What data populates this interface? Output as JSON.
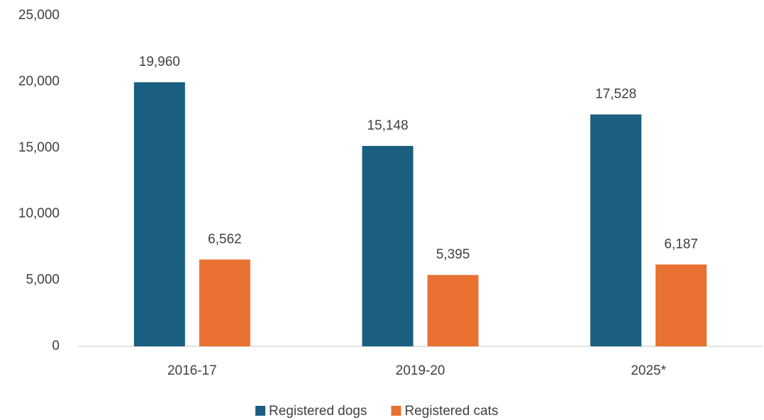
{
  "chart_data": {
    "type": "bar",
    "categories": [
      "2016-17",
      "2019-20",
      "2025*"
    ],
    "series": [
      {
        "name": "Registered dogs",
        "color": "#1a5e80",
        "values": [
          19960,
          15148,
          17528
        ],
        "value_labels": [
          "19,960",
          "15,148",
          "17,528"
        ]
      },
      {
        "name": "Registered cats",
        "color": "#e97132",
        "values": [
          6562,
          5395,
          6187
        ],
        "value_labels": [
          "6,562",
          "5,395",
          "6,187"
        ]
      }
    ],
    "ylim": [
      0,
      25000
    ],
    "yticks": [
      0,
      {
        "value": 5000,
        "label": "5,000"
      },
      {
        "value": 10000,
        "label": "10,000"
      },
      {
        "value": 15000,
        "label": "15,000"
      },
      {
        "value": 20000,
        "label": "20,000"
      },
      {
        "value": 25000,
        "label": "25,000"
      }
    ],
    "grid": false,
    "legend": "bottom"
  }
}
